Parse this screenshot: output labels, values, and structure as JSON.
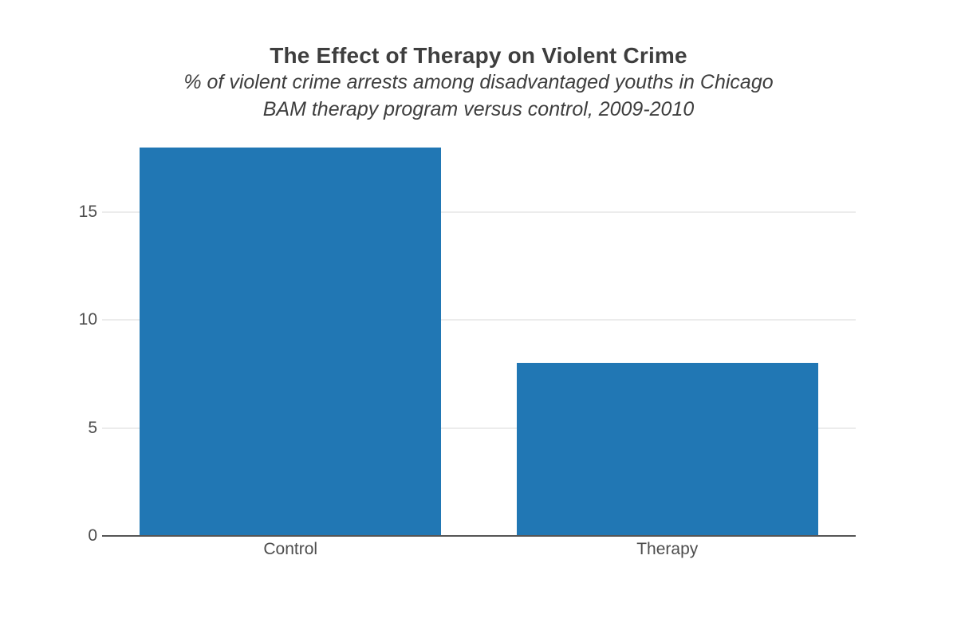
{
  "chart_data": {
    "type": "bar",
    "title": "The Effect of Therapy on Violent Crime",
    "subtitle_line1": "% of violent crime arrests among disadvantaged youths in Chicago",
    "subtitle_line2": "BAM therapy program versus control, 2009-2010",
    "categories": [
      "Control",
      "Therapy"
    ],
    "values": [
      18,
      8
    ],
    "xlabel": "",
    "ylabel": "",
    "yticks": [
      0,
      5,
      10,
      15
    ],
    "ylim": [
      0,
      18.1
    ],
    "grid": "horizontal",
    "legend": "none",
    "colors": {
      "bar": "#2177b4",
      "grid": "#ececec",
      "axis": "#555555",
      "tick_text": "#4d4d4d",
      "title_text": "#3e3e3e",
      "background": "#ffffff"
    }
  }
}
